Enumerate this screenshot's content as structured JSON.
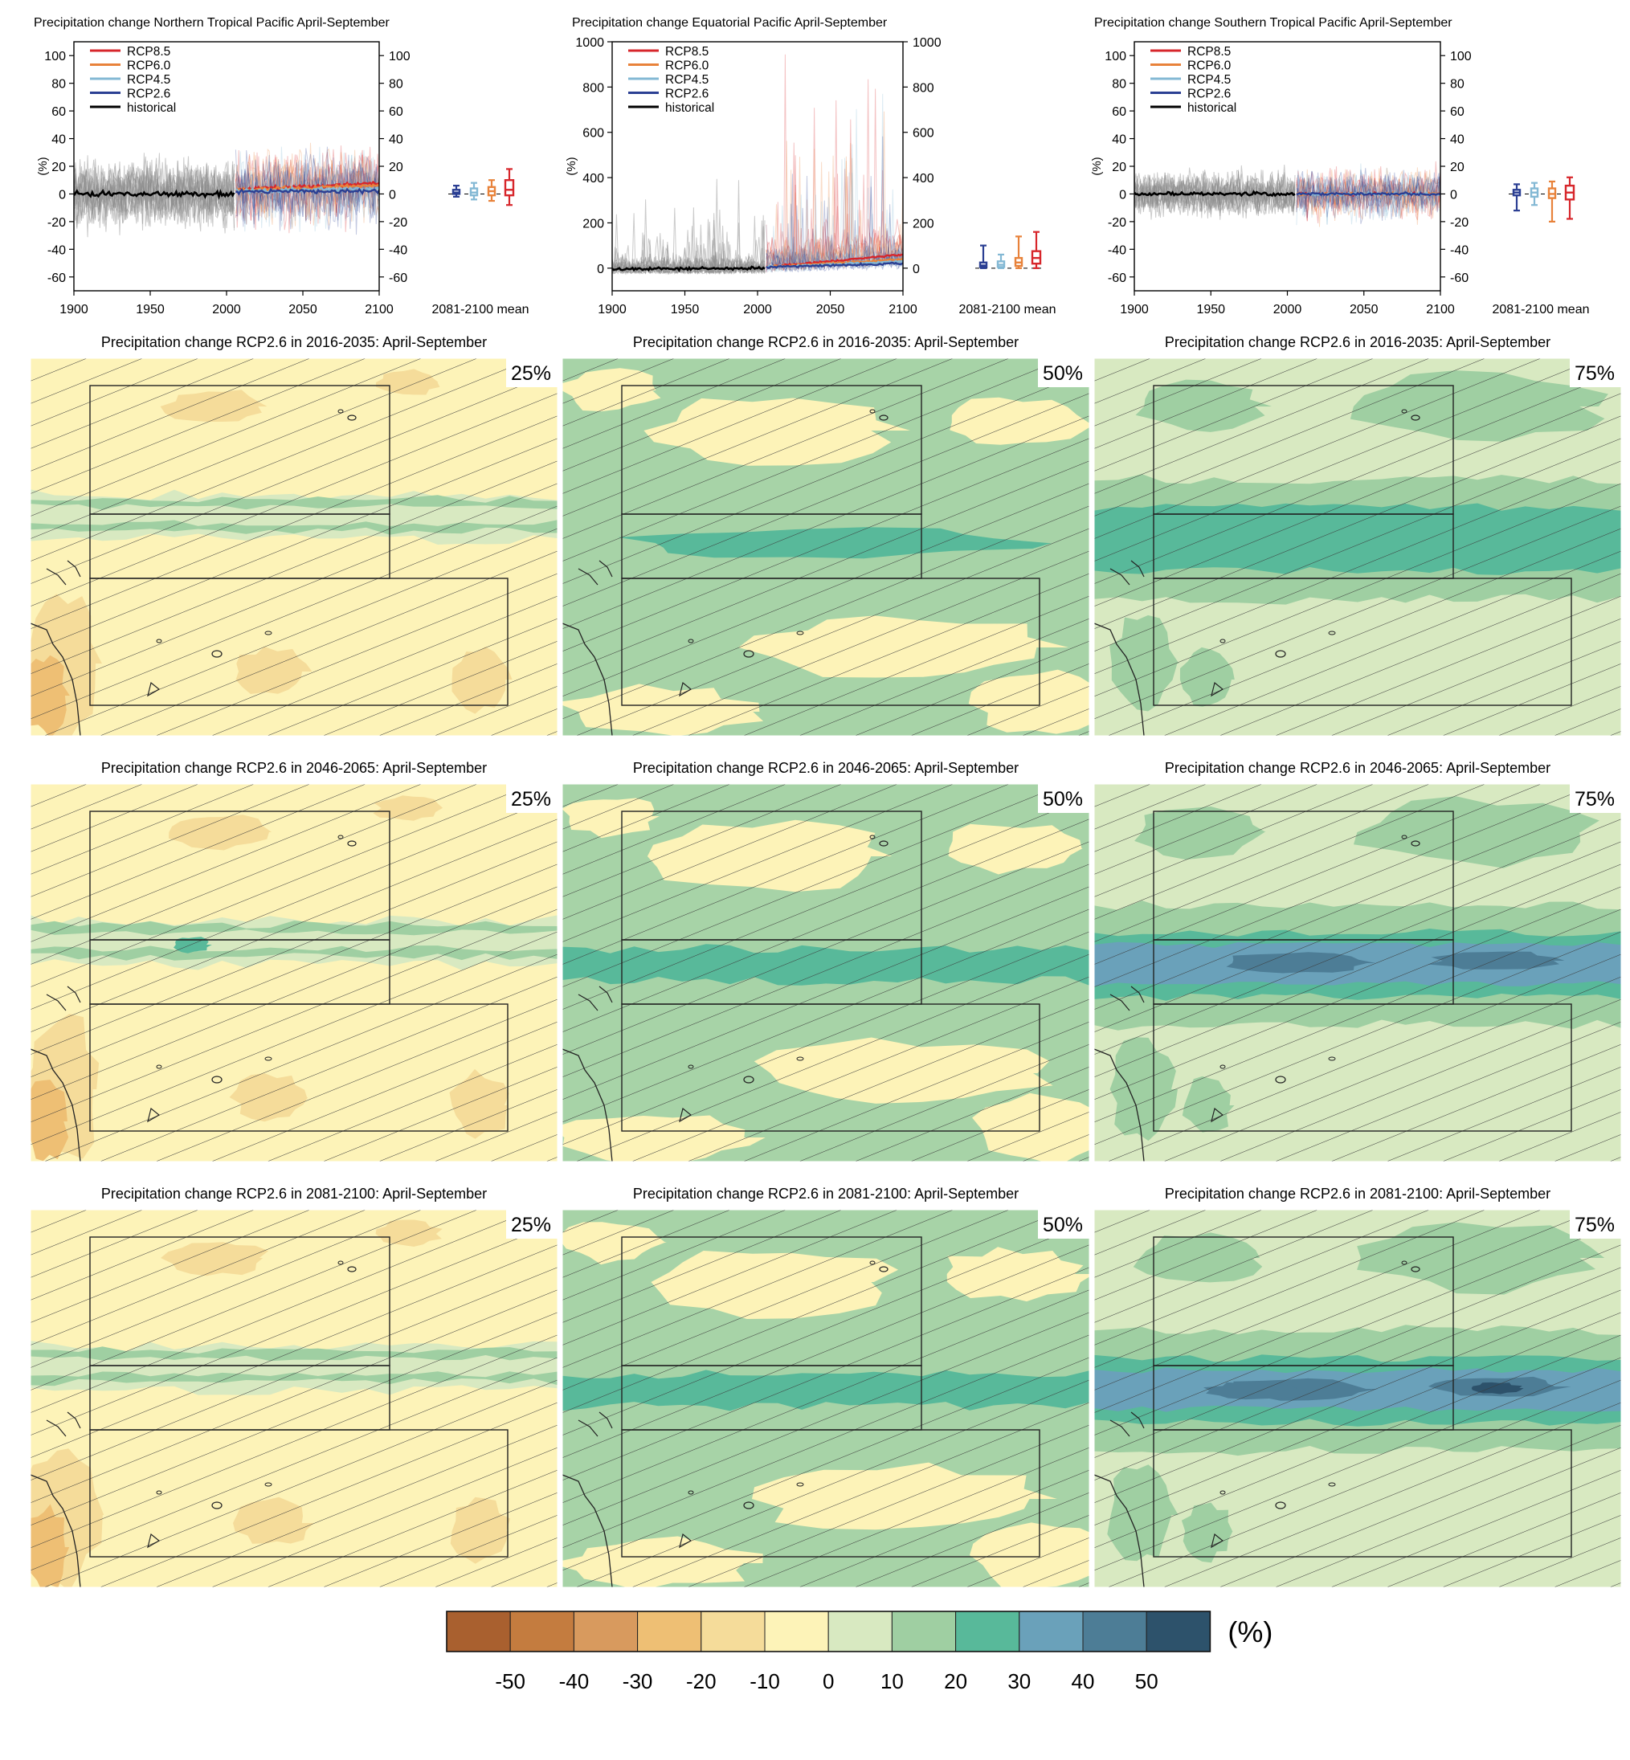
{
  "colors": {
    "rcp85": "#d7262b",
    "rcp60": "#e8823a",
    "rcp45": "#83b8d4",
    "rcp26": "#2b3f93",
    "historical": "#000000",
    "ensemble_gray": "#8c8c8c"
  },
  "chart_data": [
    {
      "type": "line",
      "title": "Precipitation change Northern Tropical Pacific April-September",
      "ylabel": "(%)",
      "xlim": [
        1900,
        2100
      ],
      "ylim": [
        -70,
        110
      ],
      "x_ticks": [
        1900,
        1950,
        2000,
        2050,
        2100
      ],
      "y_ticks": [
        -60,
        -40,
        -20,
        0,
        20,
        40,
        60,
        80,
        100
      ],
      "legend": [
        "RCP8.5",
        "RCP6.0",
        "RCP4.5",
        "RCP2.6",
        "historical"
      ],
      "legend_position": "top-left",
      "spread": 22,
      "historical_mean": {
        "x": [
          1900,
          2005
        ],
        "y": [
          0,
          0
        ]
      },
      "scenario_means": [
        {
          "name": "RCP8.5",
          "x": [
            2006,
            2100
          ],
          "y": [
            3,
            8
          ]
        },
        {
          "name": "RCP6.0",
          "x": [
            2006,
            2100
          ],
          "y": [
            3,
            6
          ]
        },
        {
          "name": "RCP4.5",
          "x": [
            2006,
            2100
          ],
          "y": [
            2,
            4
          ]
        },
        {
          "name": "RCP2.6",
          "x": [
            2006,
            2100
          ],
          "y": [
            2,
            2
          ]
        }
      ],
      "box_label": "2081-2100 mean",
      "boxes": [
        {
          "name": "RCP2.6",
          "min": -2,
          "q1": 0,
          "median": 1,
          "q3": 3,
          "max": 6
        },
        {
          "name": "RCP4.5",
          "min": -4,
          "q1": -1,
          "median": 1,
          "q3": 4,
          "max": 8
        },
        {
          "name": "RCP6.0",
          "min": -5,
          "q1": -1,
          "median": 2,
          "q3": 5,
          "max": 10
        },
        {
          "name": "RCP8.5",
          "min": -8,
          "q1": -1,
          "median": 3,
          "q3": 10,
          "max": 18
        }
      ]
    },
    {
      "type": "line",
      "title": "Precipitation change Equatorial Pacific April-September",
      "ylabel": "(%)",
      "xlim": [
        1900,
        2100
      ],
      "ylim": [
        -100,
        1000
      ],
      "x_ticks": [
        1900,
        1950,
        2000,
        2050,
        2100
      ],
      "y_ticks": [
        0,
        200,
        400,
        600,
        800,
        1000
      ],
      "legend": [
        "RCP8.5",
        "RCP6.0",
        "RCP4.5",
        "RCP2.6",
        "historical"
      ],
      "legend_position": "top-left",
      "spread": 70,
      "historical_mean": {
        "x": [
          1900,
          2005
        ],
        "y": [
          -5,
          0
        ]
      },
      "scenario_means": [
        {
          "name": "RCP8.5",
          "x": [
            2006,
            2100
          ],
          "y": [
            5,
            60
          ]
        },
        {
          "name": "RCP6.0",
          "x": [
            2006,
            2100
          ],
          "y": [
            5,
            40
          ]
        },
        {
          "name": "RCP4.5",
          "x": [
            2006,
            2100
          ],
          "y": [
            5,
            30
          ]
        },
        {
          "name": "RCP2.6",
          "x": [
            2006,
            2100
          ],
          "y": [
            5,
            20
          ]
        }
      ],
      "box_label": "2081-2100 mean",
      "boxes": [
        {
          "name": "RCP2.6",
          "min": 0,
          "q1": 5,
          "median": 12,
          "q3": 25,
          "max": 100
        },
        {
          "name": "RCP4.5",
          "min": 0,
          "q1": 5,
          "median": 15,
          "q3": 30,
          "max": 60
        },
        {
          "name": "RCP6.0",
          "min": 0,
          "q1": 10,
          "median": 25,
          "q3": 45,
          "max": 140
        },
        {
          "name": "RCP8.5",
          "min": 0,
          "q1": 20,
          "median": 45,
          "q3": 75,
          "max": 160
        }
      ]
    },
    {
      "type": "line",
      "title": "Precipitation change Southern Tropical Pacific April-September",
      "ylabel": "(%)",
      "xlim": [
        1900,
        2100
      ],
      "ylim": [
        -70,
        110
      ],
      "x_ticks": [
        1900,
        1950,
        2000,
        2050,
        2100
      ],
      "y_ticks": [
        -60,
        -40,
        -20,
        0,
        20,
        40,
        60,
        80,
        100
      ],
      "legend": [
        "RCP8.5",
        "RCP6.0",
        "RCP4.5",
        "RCP2.6",
        "historical"
      ],
      "legend_position": "top-left",
      "spread": 15,
      "historical_mean": {
        "x": [
          1900,
          2005
        ],
        "y": [
          0,
          0
        ]
      },
      "scenario_means": [
        {
          "name": "RCP8.5",
          "x": [
            2006,
            2100
          ],
          "y": [
            0,
            0
          ]
        },
        {
          "name": "RCP6.0",
          "x": [
            2006,
            2100
          ],
          "y": [
            0,
            0
          ]
        },
        {
          "name": "RCP4.5",
          "x": [
            2006,
            2100
          ],
          "y": [
            0,
            0
          ]
        },
        {
          "name": "RCP2.6",
          "x": [
            2006,
            2100
          ],
          "y": [
            0,
            0
          ]
        }
      ],
      "box_label": "2081-2100 mean",
      "boxes": [
        {
          "name": "RCP2.6",
          "min": -12,
          "q1": -1,
          "median": 1,
          "q3": 3,
          "max": 7
        },
        {
          "name": "RCP4.5",
          "min": -8,
          "q1": -2,
          "median": 1,
          "q3": 4,
          "max": 8
        },
        {
          "name": "RCP6.0",
          "min": -20,
          "q1": -3,
          "median": 0,
          "q3": 4,
          "max": 9
        },
        {
          "name": "RCP8.5",
          "min": -18,
          "q1": -4,
          "median": 1,
          "q3": 6,
          "max": 12
        }
      ]
    },
    {
      "type": "heatmap",
      "maps": [
        {
          "title": "Precipitation change RCP2.6 in 2016-2035: April-September",
          "percentile": "25%",
          "level": 0
        },
        {
          "title": "Precipitation change RCP2.6 in 2016-2035: April-September",
          "percentile": "50%",
          "level": 1
        },
        {
          "title": "Precipitation change RCP2.6 in 2016-2035: April-September",
          "percentile": "75%",
          "level": 2
        },
        {
          "title": "Precipitation change RCP2.6 in 2046-2065: April-September",
          "percentile": "25%",
          "level": 0
        },
        {
          "title": "Precipitation change RCP2.6 in 2046-2065: April-September",
          "percentile": "50%",
          "level": 1.4
        },
        {
          "title": "Precipitation change RCP2.6 in 2046-2065: April-September",
          "percentile": "75%",
          "level": 3
        },
        {
          "title": "Precipitation change RCP2.6 in 2081-2100: April-September",
          "percentile": "25%",
          "level": 0
        },
        {
          "title": "Precipitation change RCP2.6 in 2081-2100: April-September",
          "percentile": "50%",
          "level": 1.6
        },
        {
          "title": "Precipitation change RCP2.6 in 2081-2100: April-September",
          "percentile": "75%",
          "level": 3.3
        }
      ]
    },
    {
      "type": "colorbar",
      "unit": "(%)",
      "tick_labels": [
        "-50",
        "-40",
        "-30",
        "-20",
        "-10",
        "0",
        "10",
        "20",
        "30",
        "40",
        "50"
      ],
      "colors": [
        "#a9602f",
        "#c47c3f",
        "#d89a5e",
        "#eebf74",
        "#f5dc9a",
        "#fdf3b8",
        "#d8e9c1",
        "#9fcfa2",
        "#58b99a",
        "#6aa1ba",
        "#4d7d96",
        "#2d526b"
      ]
    }
  ]
}
